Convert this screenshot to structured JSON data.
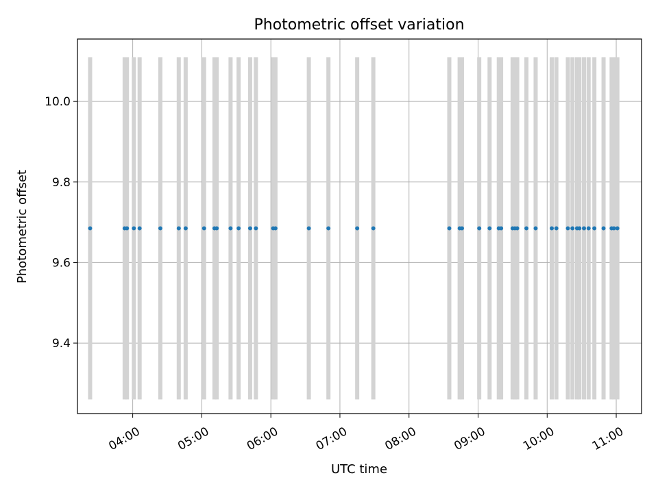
{
  "chart_data": {
    "type": "scatter",
    "title": "Photometric offset variation",
    "xlabel": "UTC time",
    "ylabel": "Photometric offset",
    "xlim": [
      "03:12",
      "11:22"
    ],
    "ylim": [
      9.225,
      10.155
    ],
    "x_ticks": [
      "04:00",
      "05:00",
      "06:00",
      "07:00",
      "08:00",
      "09:00",
      "10:00",
      "11:00"
    ],
    "y_ticks": [
      9.4,
      9.6,
      9.8,
      10.0
    ],
    "grid": true,
    "error_band": [
      9.26,
      10.11
    ],
    "colors": {
      "points": "#1f77b4",
      "error_bars": "#d3d3d3",
      "grid": "#b0b0b0"
    },
    "x": [
      "03:23",
      "03:53",
      "03:55",
      "04:01",
      "04:06",
      "04:24",
      "04:40",
      "04:46",
      "05:02",
      "05:11",
      "05:13",
      "05:25",
      "05:32",
      "05:42",
      "05:47",
      "06:02",
      "06:04",
      "06:33",
      "06:50",
      "07:15",
      "07:29",
      "08:35",
      "08:44",
      "08:46",
      "09:01",
      "09:10",
      "09:18",
      "09:20",
      "09:30",
      "09:32",
      "09:34",
      "09:42",
      "09:50",
      "10:04",
      "10:08",
      "10:18",
      "10:22",
      "10:26",
      "10:28",
      "10:32",
      "10:36",
      "10:41",
      "10:49",
      "10:56",
      "10:58",
      "11:01"
    ],
    "y": [
      9.685,
      9.685,
      9.685,
      9.685,
      9.685,
      9.685,
      9.685,
      9.685,
      9.685,
      9.685,
      9.685,
      9.685,
      9.685,
      9.685,
      9.685,
      9.685,
      9.685,
      9.685,
      9.685,
      9.685,
      9.685,
      9.685,
      9.685,
      9.685,
      9.685,
      9.685,
      9.685,
      9.685,
      9.685,
      9.685,
      9.685,
      9.685,
      9.685,
      9.685,
      9.685,
      9.685,
      9.685,
      9.685,
      9.685,
      9.685,
      9.685,
      9.685,
      9.685,
      9.685,
      9.685,
      9.685
    ]
  }
}
